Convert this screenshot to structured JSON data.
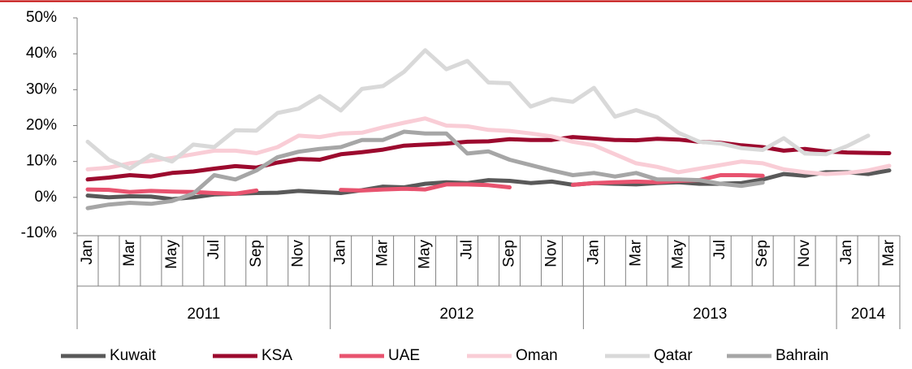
{
  "chart_data": {
    "type": "line",
    "categories": [
      "Jan",
      null,
      "Mar",
      null,
      "May",
      null,
      "Jul",
      null,
      "Sep",
      null,
      "Nov",
      null,
      "Jan",
      null,
      "Mar",
      null,
      "May",
      null,
      "Jul",
      null,
      "Sep",
      null,
      "Nov",
      null,
      "Jan",
      null,
      "Mar",
      null,
      "May",
      null,
      "Jul",
      null,
      "Sep",
      null,
      "Nov",
      null,
      "Jan",
      null,
      "Mar"
    ],
    "groups": [
      "2011",
      "2012",
      "2013",
      "2014"
    ],
    "ylim": [
      -10,
      50
    ],
    "yticks": [
      {
        "value": -10,
        "label": "-10%"
      },
      {
        "value": 0,
        "label": "0%"
      },
      {
        "value": 10,
        "label": "10%"
      },
      {
        "value": 20,
        "label": "20%"
      },
      {
        "value": 30,
        "label": "30%"
      },
      {
        "value": 40,
        "label": "40%"
      },
      {
        "value": 50,
        "label": "50%"
      }
    ],
    "grid": false,
    "legend": "bottom",
    "series": [
      {
        "name": "Kuwait",
        "color": "#595959",
        "values": [
          0.5,
          0,
          0.3,
          0.2,
          -0.5,
          0,
          0.8,
          1,
          1.2,
          1.3,
          1.8,
          1.5,
          1.2,
          2,
          3,
          2.8,
          3.8,
          4.2,
          4,
          4.8,
          4.6,
          4,
          4.4,
          3.5,
          4,
          3.8,
          3.6,
          4,
          4.2,
          3.8,
          3.8,
          4,
          5,
          6.5,
          6,
          7,
          7,
          6.5,
          7.5
        ]
      },
      {
        "name": "KSA",
        "color": "#9c0a2e",
        "values": [
          5,
          5.5,
          6.2,
          5.8,
          6.8,
          7.2,
          8,
          8.7,
          8.3,
          9.7,
          10.7,
          10.5,
          12,
          12.6,
          13.3,
          14.4,
          14.7,
          15,
          15.5,
          15.6,
          16.2,
          16,
          16,
          16.8,
          16.4,
          16,
          15.9,
          16.3,
          16.1,
          15.5,
          15.2,
          14.5,
          14,
          13,
          13.5,
          12.8,
          12.5,
          12.4,
          12.3
        ]
      },
      {
        "name": "UAE",
        "color": "#e8536f",
        "values": [
          2.2,
          2.1,
          1.5,
          1.8,
          1.6,
          1.5,
          1.2,
          1,
          1.9,
          null,
          null,
          null,
          2.1,
          1.9,
          2.2,
          2.4,
          2.2,
          3.6,
          3.6,
          3.4,
          2.8,
          null,
          null,
          3.5,
          4,
          4.2,
          4.4,
          4.2,
          4.6,
          4.8,
          6.2,
          6.2,
          6,
          null,
          null,
          null,
          null,
          null,
          null
        ]
      },
      {
        "name": "Oman",
        "color": "#f9cdd6",
        "values": [
          7.8,
          8.3,
          9.5,
          10.2,
          11,
          12,
          13,
          13,
          12.3,
          14,
          17.2,
          16.8,
          17.8,
          18,
          19.5,
          20.8,
          22,
          20,
          19.8,
          18.8,
          18.5,
          17.8,
          17,
          15.5,
          14.5,
          12,
          9.5,
          8.5,
          7,
          8,
          9,
          10,
          9.5,
          7.8,
          7,
          6.5,
          6.8,
          7.5,
          8.8
        ]
      },
      {
        "name": "Qatar",
        "color": "#d9d9d9",
        "values": [
          15.5,
          10.5,
          8,
          11.8,
          10,
          14.7,
          14,
          18.7,
          18.6,
          23.5,
          24.7,
          28.2,
          24.2,
          30.2,
          31,
          35,
          41,
          35.7,
          38,
          32,
          31.8,
          25.3,
          27.4,
          26.6,
          30.5,
          22.5,
          24.3,
          22.3,
          18,
          15.5,
          15,
          13.7,
          13.2,
          16.5,
          12.2,
          12,
          14.3,
          17.2,
          null
        ]
      },
      {
        "name": "Bahrain",
        "color": "#a6a6a6",
        "values": [
          -3,
          -2,
          -1.5,
          -1.8,
          -1,
          1,
          6.2,
          5,
          7.5,
          11.2,
          12.7,
          13.5,
          14,
          16,
          16,
          18.3,
          17.8,
          17.8,
          12.2,
          12.8,
          10.5,
          9,
          7.5,
          6.2,
          6.8,
          5.8,
          6.8,
          5,
          5,
          4.8,
          3.8,
          3.2,
          4.1,
          null,
          null,
          null,
          null,
          null,
          null
        ]
      }
    ]
  }
}
